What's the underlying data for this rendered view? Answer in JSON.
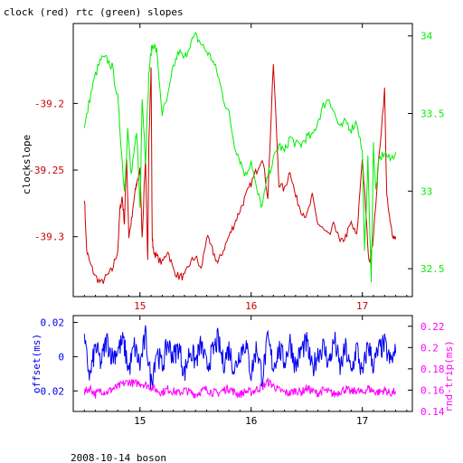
{
  "title": "clock (red) rtc (green) slopes",
  "footer": "2008-10-14 boson",
  "colors": {
    "clock": "#cc0000",
    "rtc": "#00ee00",
    "offset": "#0000ee",
    "rndtrip": "#ff00ff",
    "frame": "#000000"
  },
  "chart_data": [
    {
      "type": "line",
      "title": "clock (red) rtc (green) slopes",
      "xlabel": "",
      "ylabel": "clockslope",
      "y2label": "",
      "xlim": [
        14.4,
        17.45
      ],
      "ylim": [
        -39.345,
        -39.14
      ],
      "y2lim": [
        32.32,
        34.08
      ],
      "grid": false,
      "xticks": [
        15,
        16,
        17
      ],
      "xtick_labels": [
        "15",
        "16",
        "17"
      ],
      "yticks": [
        -39.2,
        -39.25,
        -39.3
      ],
      "ytick_labels": [
        "-39.2",
        "-39.25",
        "-39.3"
      ],
      "y2ticks": [
        34,
        33.5,
        33,
        32.5
      ],
      "y2tick_labels": [
        "34",
        "33.5",
        "33",
        "32.5"
      ],
      "series": [
        {
          "name": "clock",
          "axis": "left",
          "x": [
            14.5,
            14.52,
            14.55,
            14.6,
            14.65,
            14.7,
            14.75,
            14.8,
            14.82,
            14.84,
            14.86,
            14.88,
            14.9,
            14.93,
            14.95,
            14.97,
            15.0,
            15.02,
            15.05,
            15.07,
            15.08,
            15.1,
            15.11,
            15.12,
            15.15,
            15.2,
            15.25,
            15.3,
            15.35,
            15.4,
            15.45,
            15.5,
            15.55,
            15.6,
            15.65,
            15.7,
            15.75,
            15.8,
            15.85,
            15.9,
            15.95,
            16.0,
            16.05,
            16.1,
            16.15,
            16.2,
            16.25,
            16.3,
            16.35,
            16.4,
            16.45,
            16.5,
            16.55,
            16.6,
            16.65,
            16.7,
            16.75,
            16.8,
            16.85,
            16.9,
            16.95,
            17.0,
            17.03,
            17.06,
            17.1,
            17.15,
            17.2,
            17.22,
            17.25,
            17.28,
            17.3
          ],
          "y": [
            -39.27,
            -39.31,
            -39.32,
            -39.33,
            -39.335,
            -39.33,
            -39.325,
            -39.31,
            -39.28,
            -39.27,
            -39.29,
            -39.24,
            -39.3,
            -39.285,
            -39.27,
            -39.26,
            -39.25,
            -39.3,
            -39.24,
            -39.32,
            -39.23,
            -39.17,
            -39.3,
            -39.31,
            -39.315,
            -39.32,
            -39.31,
            -39.325,
            -39.33,
            -39.33,
            -39.32,
            -39.315,
            -39.325,
            -39.3,
            -39.31,
            -39.32,
            -39.31,
            -39.3,
            -39.29,
            -39.28,
            -39.27,
            -39.26,
            -39.25,
            -39.24,
            -39.27,
            -39.17,
            -39.26,
            -39.265,
            -39.25,
            -39.27,
            -39.28,
            -39.285,
            -39.27,
            -39.29,
            -39.295,
            -39.3,
            -39.29,
            -39.305,
            -39.3,
            -39.29,
            -39.3,
            -39.24,
            -39.28,
            -39.32,
            -39.3,
            -39.24,
            -39.19,
            -39.27,
            -39.29,
            -39.3,
            -39.3
          ]
        },
        {
          "name": "rtc",
          "axis": "right",
          "x": [
            14.5,
            14.55,
            14.6,
            14.65,
            14.7,
            14.75,
            14.8,
            14.83,
            14.86,
            14.89,
            14.92,
            14.95,
            14.97,
            15.0,
            15.02,
            15.05,
            15.08,
            15.1,
            15.12,
            15.15,
            15.2,
            15.25,
            15.3,
            15.35,
            15.4,
            15.45,
            15.5,
            15.55,
            15.6,
            15.65,
            15.7,
            15.75,
            15.8,
            15.85,
            15.9,
            15.95,
            16.0,
            16.05,
            16.1,
            16.15,
            16.2,
            16.25,
            16.3,
            16.35,
            16.4,
            16.45,
            16.5,
            16.55,
            16.6,
            16.65,
            16.7,
            16.75,
            16.8,
            16.85,
            16.9,
            16.95,
            17.0,
            17.02,
            17.05,
            17.08,
            17.1,
            17.12,
            17.15,
            17.2,
            17.25,
            17.3
          ],
          "y": [
            33.4,
            33.6,
            33.75,
            33.85,
            33.85,
            33.8,
            33.6,
            33.3,
            33.0,
            33.4,
            33.1,
            33.25,
            33.4,
            32.9,
            33.6,
            33.2,
            33.75,
            33.9,
            33.95,
            33.9,
            33.5,
            33.6,
            33.8,
            33.9,
            33.85,
            33.95,
            34.0,
            33.95,
            33.9,
            33.85,
            33.75,
            33.6,
            33.5,
            33.3,
            33.2,
            33.1,
            33.2,
            33.0,
            32.9,
            33.1,
            33.2,
            33.3,
            33.25,
            33.35,
            33.3,
            33.3,
            33.35,
            33.35,
            33.45,
            33.55,
            33.6,
            33.5,
            33.4,
            33.45,
            33.4,
            33.45,
            33.25,
            32.6,
            33.2,
            32.4,
            33.3,
            33.0,
            33.2,
            33.25,
            33.2,
            33.25
          ]
        }
      ]
    },
    {
      "type": "line",
      "title": "",
      "xlabel": "",
      "ylabel": "offset(ms)",
      "y2label": "rnd-trip(ms)",
      "xlim": [
        14.4,
        17.45
      ],
      "ylim": [
        -0.032,
        0.024
      ],
      "y2lim": [
        0.14,
        0.23
      ],
      "grid": false,
      "xticks": [
        15,
        16,
        17
      ],
      "xtick_labels": [
        "15",
        "16",
        "17"
      ],
      "yticks": [
        0.02,
        0,
        -0.02
      ],
      "ytick_labels": [
        "0.02",
        "0",
        "-0.02"
      ],
      "y2ticks": [
        0.22,
        0.2,
        0.18,
        0.16,
        0.14
      ],
      "y2tick_labels": [
        "0.22",
        "0.2",
        "0.18",
        "0.16",
        "0.14"
      ],
      "series": [
        {
          "name": "offset",
          "axis": "left",
          "x": [
            14.5,
            14.55,
            14.6,
            14.65,
            14.7,
            14.75,
            14.8,
            14.85,
            14.9,
            14.95,
            15.0,
            15.05,
            15.1,
            15.15,
            15.2,
            15.25,
            15.3,
            15.35,
            15.4,
            15.45,
            15.5,
            15.55,
            15.6,
            15.65,
            15.7,
            15.75,
            15.8,
            15.85,
            15.9,
            15.95,
            16.0,
            16.05,
            16.1,
            16.15,
            16.2,
            16.25,
            16.3,
            16.35,
            16.4,
            16.45,
            16.5,
            16.55,
            16.6,
            16.65,
            16.7,
            16.75,
            16.8,
            16.85,
            16.9,
            16.95,
            17.0,
            17.05,
            17.1,
            17.15,
            17.2,
            17.25,
            17.3
          ],
          "y": [
            0.008,
            -0.012,
            0.006,
            -0.004,
            0.01,
            0.0,
            0.004,
            0.009,
            -0.008,
            0.006,
            -0.005,
            0.012,
            -0.015,
            0.004,
            -0.006,
            0.008,
            0.0,
            0.006,
            -0.01,
            0.004,
            -0.003,
            0.007,
            -0.006,
            0.002,
            0.01,
            -0.004,
            0.005,
            -0.008,
            0.003,
            0.008,
            -0.01,
            0.006,
            -0.012,
            0.01,
            -0.006,
            0.005,
            -0.003,
            0.009,
            -0.006,
            0.004,
            0.008,
            -0.008,
            0.002,
            0.006,
            -0.004,
            0.01,
            -0.007,
            0.005,
            -0.01,
            0.006,
            -0.012,
            0.008,
            -0.005,
            0.004,
            0.007,
            -0.003,
            0.002
          ]
        },
        {
          "name": "rnd-trip",
          "axis": "right",
          "x": [
            14.5,
            14.55,
            14.6,
            14.65,
            14.7,
            14.75,
            14.8,
            14.85,
            14.9,
            14.95,
            15.0,
            15.05,
            15.1,
            15.15,
            15.2,
            15.25,
            15.3,
            15.35,
            15.4,
            15.45,
            15.5,
            15.55,
            15.6,
            15.65,
            15.7,
            15.75,
            15.8,
            15.85,
            15.9,
            15.95,
            16.0,
            16.05,
            16.1,
            16.15,
            16.2,
            16.25,
            16.3,
            16.35,
            16.4,
            16.45,
            16.5,
            16.55,
            16.6,
            16.65,
            16.7,
            16.75,
            16.8,
            16.85,
            16.9,
            16.95,
            17.0,
            17.05,
            17.1,
            17.15,
            17.2,
            17.25,
            17.3
          ],
          "y": [
            0.158,
            0.162,
            0.156,
            0.16,
            0.158,
            0.161,
            0.163,
            0.166,
            0.168,
            0.166,
            0.167,
            0.165,
            0.163,
            0.16,
            0.158,
            0.161,
            0.159,
            0.157,
            0.16,
            0.158,
            0.156,
            0.159,
            0.161,
            0.158,
            0.157,
            0.16,
            0.162,
            0.158,
            0.156,
            0.159,
            0.158,
            0.161,
            0.163,
            0.168,
            0.164,
            0.16,
            0.158,
            0.157,
            0.16,
            0.158,
            0.162,
            0.159,
            0.157,
            0.16,
            0.158,
            0.156,
            0.159,
            0.161,
            0.158,
            0.16,
            0.157,
            0.162,
            0.159,
            0.158,
            0.16,
            0.157,
            0.159
          ]
        }
      ]
    }
  ]
}
